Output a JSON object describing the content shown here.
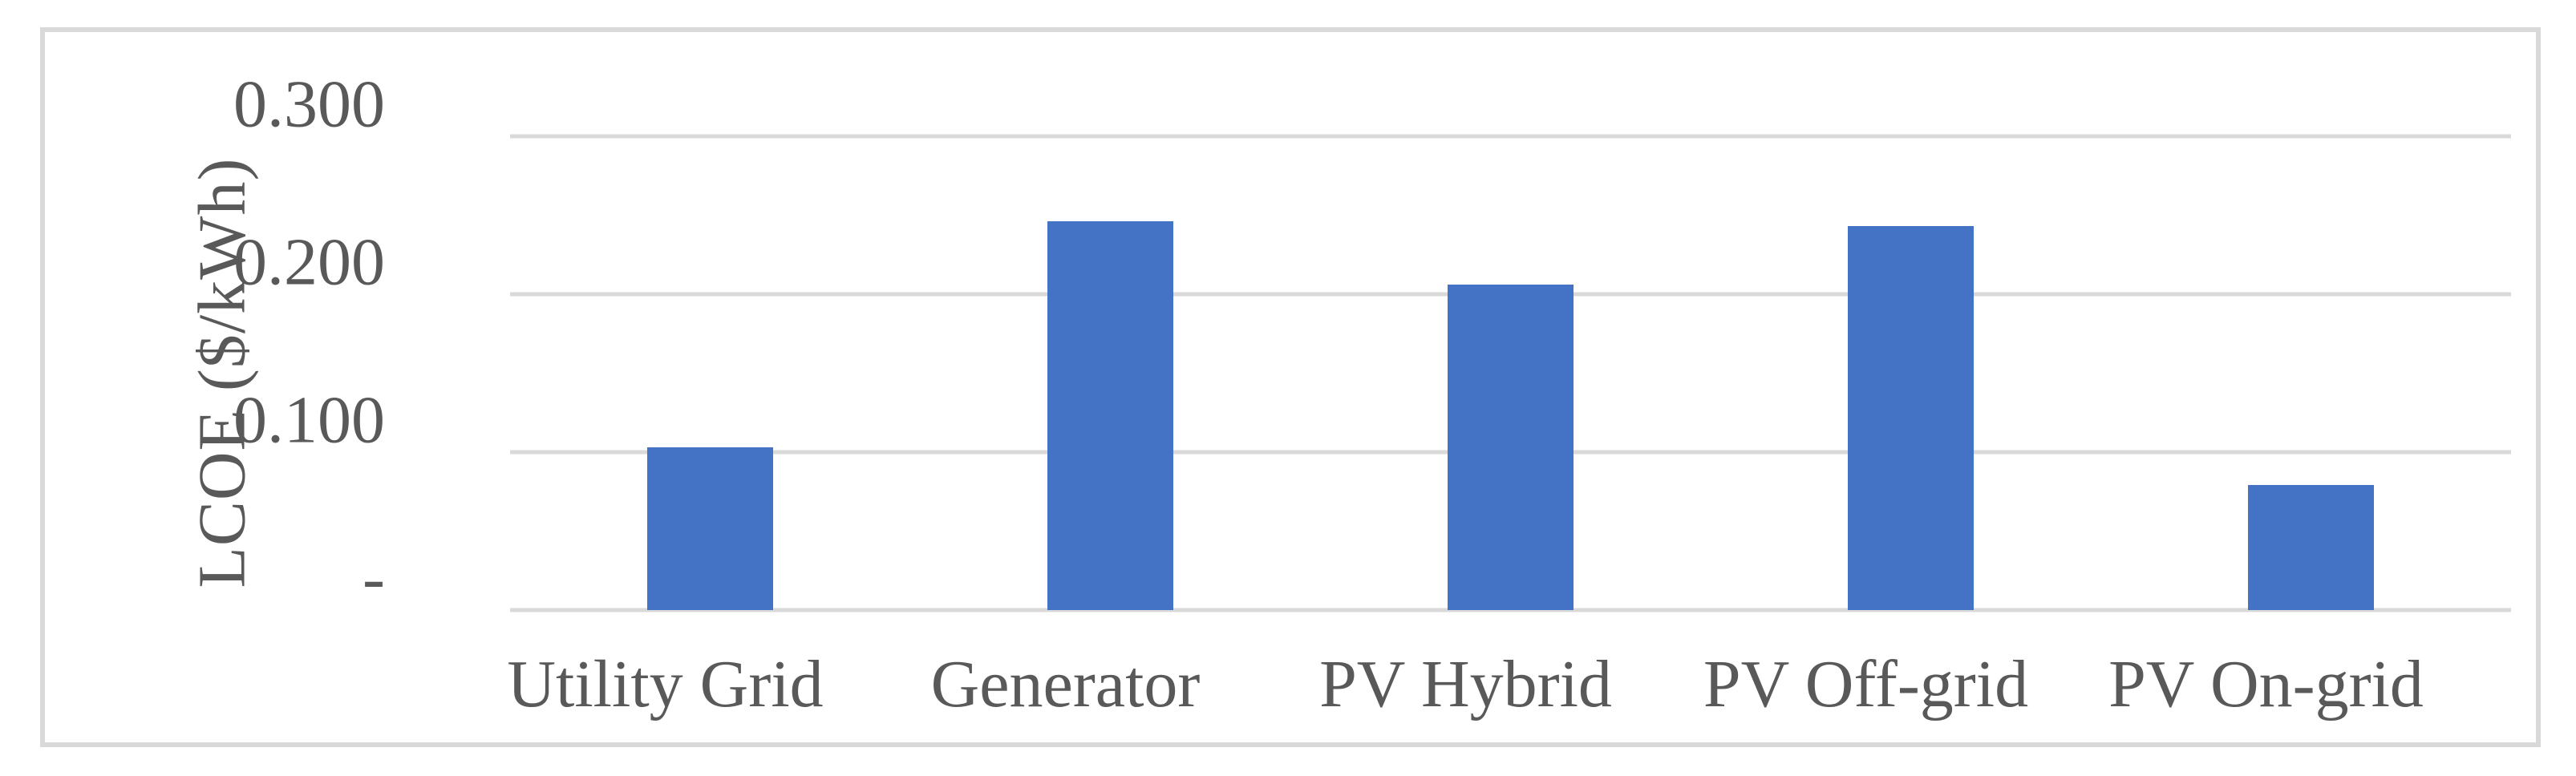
{
  "chart_data": {
    "type": "bar",
    "ylabel": "LCOE ($/kWh)",
    "categories": [
      "Utility Grid",
      "Generator",
      "PV Hybrid",
      "PV Off-grid",
      "PV On-grid"
    ],
    "values": [
      0.103,
      0.246,
      0.206,
      0.243,
      0.079
    ],
    "ylim": [
      0,
      0.3
    ],
    "ytick_interval": 0.1,
    "yticks": [
      0.3,
      0.2,
      0.1,
      0
    ],
    "ytick_labels": [
      "0.300",
      "0.200",
      "0.100",
      "-"
    ],
    "grid": true,
    "legend": false,
    "colors": {
      "bar": "#4472C4",
      "gridline": "#D9D9D9",
      "frame_border": "#D9D9D9",
      "text": "#595959",
      "background": "#FFFFFF"
    }
  }
}
